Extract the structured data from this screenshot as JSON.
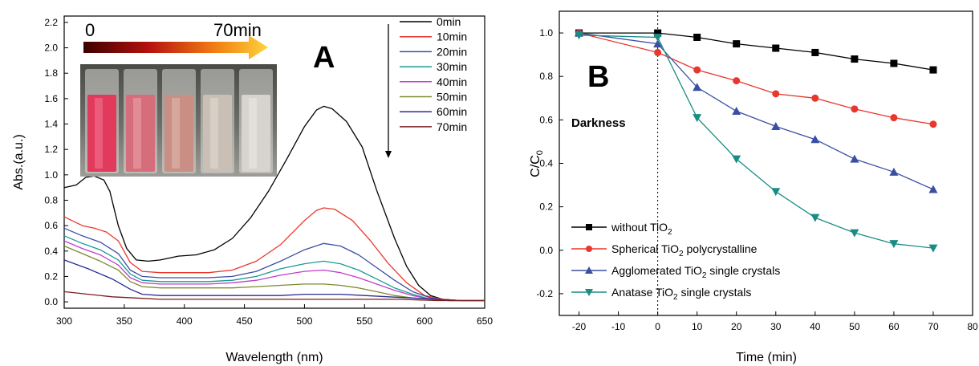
{
  "chart_data": [
    {
      "type": "line",
      "panel_label": "A",
      "xlabel": "Wavelength (nm)",
      "ylabel": "Abs.(a.u.)",
      "xlim": [
        300,
        650
      ],
      "ylim": [
        -0.05,
        2.25
      ],
      "xticks": [
        300,
        350,
        400,
        450,
        500,
        550,
        600,
        650
      ],
      "yticks": [
        0.0,
        0.2,
        0.4,
        0.6,
        0.8,
        1.0,
        1.2,
        1.4,
        1.6,
        1.8,
        2.0,
        2.2
      ],
      "legend_position": "top-right",
      "inset": {
        "gradient_start_label": "0",
        "gradient_end_label": "70min",
        "vials": 5
      },
      "series": [
        {
          "name": "0min",
          "color": "#000000",
          "x": [
            300,
            310,
            318,
            325,
            333,
            338,
            345,
            352,
            360,
            370,
            380,
            395,
            410,
            425,
            440,
            455,
            470,
            485,
            500,
            510,
            516,
            523,
            535,
            548,
            560,
            575,
            585,
            595,
            605,
            615,
            630,
            650
          ],
          "y": [
            0.9,
            0.92,
            0.98,
            0.99,
            0.96,
            0.87,
            0.6,
            0.42,
            0.33,
            0.32,
            0.33,
            0.36,
            0.37,
            0.41,
            0.5,
            0.66,
            0.87,
            1.12,
            1.38,
            1.51,
            1.54,
            1.52,
            1.42,
            1.22,
            0.88,
            0.5,
            0.28,
            0.13,
            0.05,
            0.02,
            0.01,
            0.01
          ]
        },
        {
          "name": "10min",
          "color": "#e8372c",
          "x": [
            300,
            315,
            325,
            335,
            345,
            355,
            365,
            380,
            400,
            420,
            440,
            460,
            480,
            500,
            510,
            516,
            525,
            540,
            555,
            570,
            585,
            600,
            615,
            630,
            650
          ],
          "y": [
            0.67,
            0.6,
            0.58,
            0.55,
            0.48,
            0.31,
            0.24,
            0.23,
            0.23,
            0.23,
            0.25,
            0.32,
            0.45,
            0.64,
            0.72,
            0.74,
            0.73,
            0.64,
            0.48,
            0.3,
            0.15,
            0.05,
            0.02,
            0.01,
            0.01
          ]
        },
        {
          "name": "20min",
          "color": "#3b4fa2",
          "x": [
            300,
            315,
            330,
            345,
            355,
            365,
            380,
            400,
            420,
            440,
            460,
            480,
            500,
            516,
            530,
            545,
            560,
            575,
            590,
            605,
            620,
            650
          ],
          "y": [
            0.58,
            0.52,
            0.47,
            0.38,
            0.25,
            0.2,
            0.19,
            0.19,
            0.19,
            0.2,
            0.24,
            0.32,
            0.41,
            0.46,
            0.44,
            0.37,
            0.27,
            0.17,
            0.08,
            0.03,
            0.01,
            0.01
          ]
        },
        {
          "name": "30min",
          "color": "#1a9a94",
          "x": [
            300,
            315,
            330,
            345,
            355,
            365,
            380,
            400,
            420,
            440,
            460,
            480,
            500,
            516,
            530,
            545,
            560,
            575,
            590,
            605,
            620,
            650
          ],
          "y": [
            0.52,
            0.46,
            0.41,
            0.33,
            0.22,
            0.17,
            0.16,
            0.16,
            0.16,
            0.17,
            0.2,
            0.26,
            0.3,
            0.32,
            0.3,
            0.25,
            0.18,
            0.11,
            0.06,
            0.02,
            0.01,
            0.01
          ]
        },
        {
          "name": "40min",
          "color": "#c23ec9",
          "x": [
            300,
            315,
            330,
            345,
            355,
            365,
            380,
            400,
            420,
            440,
            460,
            480,
            500,
            516,
            530,
            545,
            560,
            575,
            590,
            605,
            620,
            650
          ],
          "y": [
            0.48,
            0.42,
            0.37,
            0.29,
            0.19,
            0.15,
            0.14,
            0.14,
            0.14,
            0.15,
            0.17,
            0.21,
            0.24,
            0.25,
            0.23,
            0.19,
            0.14,
            0.09,
            0.05,
            0.02,
            0.01,
            0.01
          ]
        },
        {
          "name": "50min",
          "color": "#7d8a2e",
          "x": [
            300,
            315,
            330,
            345,
            355,
            365,
            380,
            400,
            420,
            440,
            460,
            480,
            500,
            516,
            530,
            545,
            560,
            575,
            590,
            605,
            620,
            650
          ],
          "y": [
            0.44,
            0.38,
            0.32,
            0.25,
            0.16,
            0.12,
            0.11,
            0.11,
            0.11,
            0.11,
            0.12,
            0.13,
            0.14,
            0.14,
            0.13,
            0.11,
            0.08,
            0.05,
            0.03,
            0.02,
            0.01,
            0.01
          ]
        },
        {
          "name": "60min",
          "color": "#2a2d8f",
          "x": [
            300,
            320,
            340,
            355,
            365,
            380,
            400,
            420,
            440,
            460,
            480,
            500,
            516,
            530,
            550,
            570,
            590,
            610,
            630,
            650
          ],
          "y": [
            0.33,
            0.26,
            0.18,
            0.1,
            0.06,
            0.05,
            0.05,
            0.05,
            0.05,
            0.05,
            0.05,
            0.06,
            0.06,
            0.06,
            0.05,
            0.04,
            0.03,
            0.02,
            0.01,
            0.01
          ]
        },
        {
          "name": "70min",
          "color": "#7a1d1d",
          "x": [
            300,
            320,
            340,
            360,
            380,
            400,
            430,
            460,
            490,
            520,
            550,
            580,
            610,
            650
          ],
          "y": [
            0.08,
            0.06,
            0.04,
            0.03,
            0.02,
            0.02,
            0.02,
            0.02,
            0.02,
            0.02,
            0.02,
            0.02,
            0.01,
            0.01
          ]
        }
      ]
    },
    {
      "type": "line",
      "panel_label": "B",
      "xlabel": "Time (min)",
      "ylabel_main": "C/C",
      "ylabel_sub": "0",
      "xlim": [
        -25,
        80
      ],
      "ylim": [
        -0.3,
        1.1
      ],
      "xticks": [
        -20,
        -10,
        0,
        10,
        20,
        30,
        40,
        50,
        60,
        70,
        80
      ],
      "yticks": [
        -0.2,
        0.0,
        0.2,
        0.4,
        0.6,
        0.8,
        1.0
      ],
      "annotation": "Darkness",
      "legend_position": "bottom-left",
      "series": [
        {
          "name_pre": "without TiO",
          "name_sub": "2",
          "name_post": "",
          "color": "#000000",
          "marker": "square",
          "x": [
            -20,
            0,
            10,
            20,
            30,
            40,
            50,
            60,
            70
          ],
          "y": [
            1.0,
            1.0,
            0.98,
            0.95,
            0.93,
            0.91,
            0.88,
            0.86,
            0.83
          ]
        },
        {
          "name_pre": "Spherical TiO",
          "name_sub": "2",
          "name_post": " polycrystalline",
          "color": "#e8372c",
          "marker": "circle",
          "x": [
            -20,
            0,
            10,
            20,
            30,
            40,
            50,
            60,
            70
          ],
          "y": [
            1.0,
            0.91,
            0.83,
            0.78,
            0.72,
            0.7,
            0.65,
            0.61,
            0.58
          ]
        },
        {
          "name_pre": "Agglomerated TiO",
          "name_sub": "2",
          "name_post": " single crystals",
          "color": "#3b4fa2",
          "marker": "triangle-up",
          "x": [
            -20,
            0,
            10,
            20,
            30,
            40,
            50,
            60,
            70
          ],
          "y": [
            1.0,
            0.95,
            0.75,
            0.64,
            0.57,
            0.51,
            0.42,
            0.36,
            0.28
          ]
        },
        {
          "name_pre": "Anatase TiO",
          "name_sub": "2",
          "name_post": " single crystals",
          "color": "#1a8c85",
          "marker": "triangle-down",
          "x": [
            -20,
            0,
            10,
            20,
            30,
            40,
            50,
            60,
            70
          ],
          "y": [
            0.99,
            0.98,
            0.61,
            0.42,
            0.27,
            0.15,
            0.08,
            0.03,
            0.01
          ]
        }
      ]
    }
  ]
}
